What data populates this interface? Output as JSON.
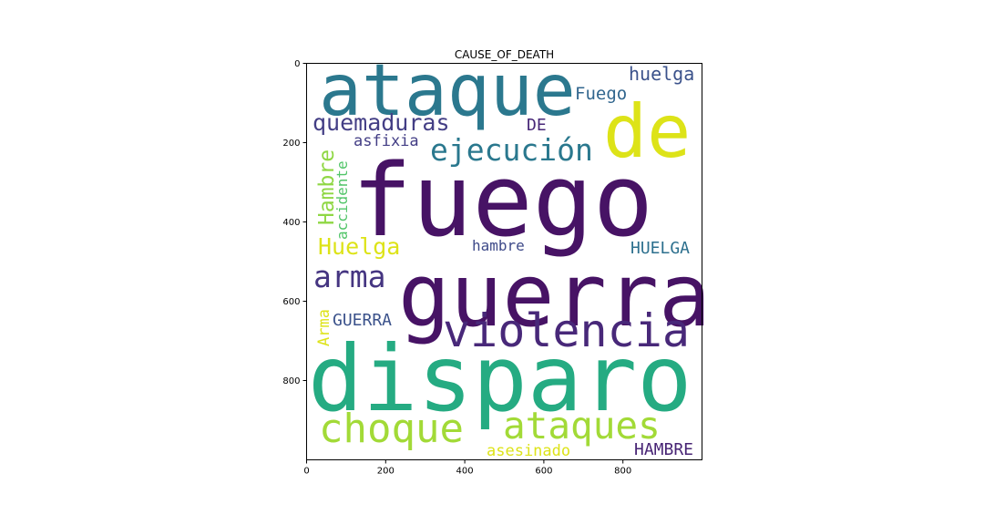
{
  "chart_data": {
    "type": "wordcloud",
    "title": "CAUSE_OF_DEATH",
    "xlim": [
      0,
      1000
    ],
    "ylim": [
      0,
      1000
    ],
    "y_inverted": true,
    "x_ticks": [
      "0",
      "200",
      "400",
      "600",
      "800"
    ],
    "y_ticks": [
      "0",
      "200",
      "400",
      "600",
      "800"
    ],
    "words": [
      {
        "text": "fuego",
        "color": "#471365",
        "rotated": false
      },
      {
        "text": "disparo",
        "color": "#25AB82",
        "rotated": false
      },
      {
        "text": "guerra",
        "color": "#471365",
        "rotated": false
      },
      {
        "text": "ataque",
        "color": "#2B788E",
        "rotated": false
      },
      {
        "text": "de",
        "color": "#DDE318",
        "rotated": false
      },
      {
        "text": "violencia",
        "color": "#482879",
        "rotated": false
      },
      {
        "text": "ataques",
        "color": "#A2DA37",
        "rotated": false
      },
      {
        "text": "choque",
        "color": "#A2DA37",
        "rotated": false
      },
      {
        "text": "ejecución",
        "color": "#2A788E",
        "rotated": false
      },
      {
        "text": "quemaduras",
        "color": "#433E85",
        "rotated": false
      },
      {
        "text": "arma",
        "color": "#453581",
        "rotated": false
      },
      {
        "text": "Huelga",
        "color": "#DDE318",
        "rotated": false
      },
      {
        "text": "Hambre",
        "color": "#8FD744",
        "rotated": true
      },
      {
        "text": "huelga",
        "color": "#3B528B",
        "rotated": false
      },
      {
        "text": "Fuego",
        "color": "#31668E",
        "rotated": false
      },
      {
        "text": "HUELGA",
        "color": "#2D708E",
        "rotated": false
      },
      {
        "text": "GUERRA",
        "color": "#3B528B",
        "rotated": false
      },
      {
        "text": "HAMBRE",
        "color": "#482575",
        "rotated": false
      },
      {
        "text": "asesinado",
        "color": "#DDE318",
        "rotated": false
      },
      {
        "text": "asfixia",
        "color": "#433E85",
        "rotated": false
      },
      {
        "text": "accidente",
        "color": "#52C569",
        "rotated": true
      },
      {
        "text": "hambre",
        "color": "#3E4A89",
        "rotated": false
      },
      {
        "text": "DE",
        "color": "#482878",
        "rotated": false
      },
      {
        "text": "Arma",
        "color": "#DDE318",
        "rotated": true
      }
    ]
  }
}
